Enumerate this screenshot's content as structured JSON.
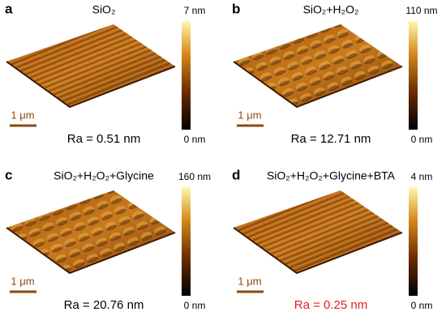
{
  "panels": [
    {
      "letter": "a",
      "title": "SiO₂",
      "colorbar_max": "7 nm",
      "colorbar_min": "0 nm",
      "scale_bar": "1 μm",
      "roughness": "Ra = 0.51 nm",
      "roughness_color": "#000000"
    },
    {
      "letter": "b",
      "title": "SiO₂+H₂O₂",
      "colorbar_max": "110 nm",
      "colorbar_min": "0 nm",
      "scale_bar": "1 μm",
      "roughness": "Ra = 12.71 nm",
      "roughness_color": "#000000"
    },
    {
      "letter": "c",
      "title": "SiO₂+H₂O₂+Glycine",
      "colorbar_max": "160 nm",
      "colorbar_min": "0 nm",
      "scale_bar": "1 μm",
      "roughness": "Ra = 20.76 nm",
      "roughness_color": "#000000"
    },
    {
      "letter": "d",
      "title": "SiO₂+H₂O₂+Glycine+BTA",
      "colorbar_max": "4 nm",
      "colorbar_min": "0 nm",
      "scale_bar": "1 μm",
      "roughness": "Ra = 0.25 nm",
      "roughness_color": "#e02020"
    }
  ]
}
